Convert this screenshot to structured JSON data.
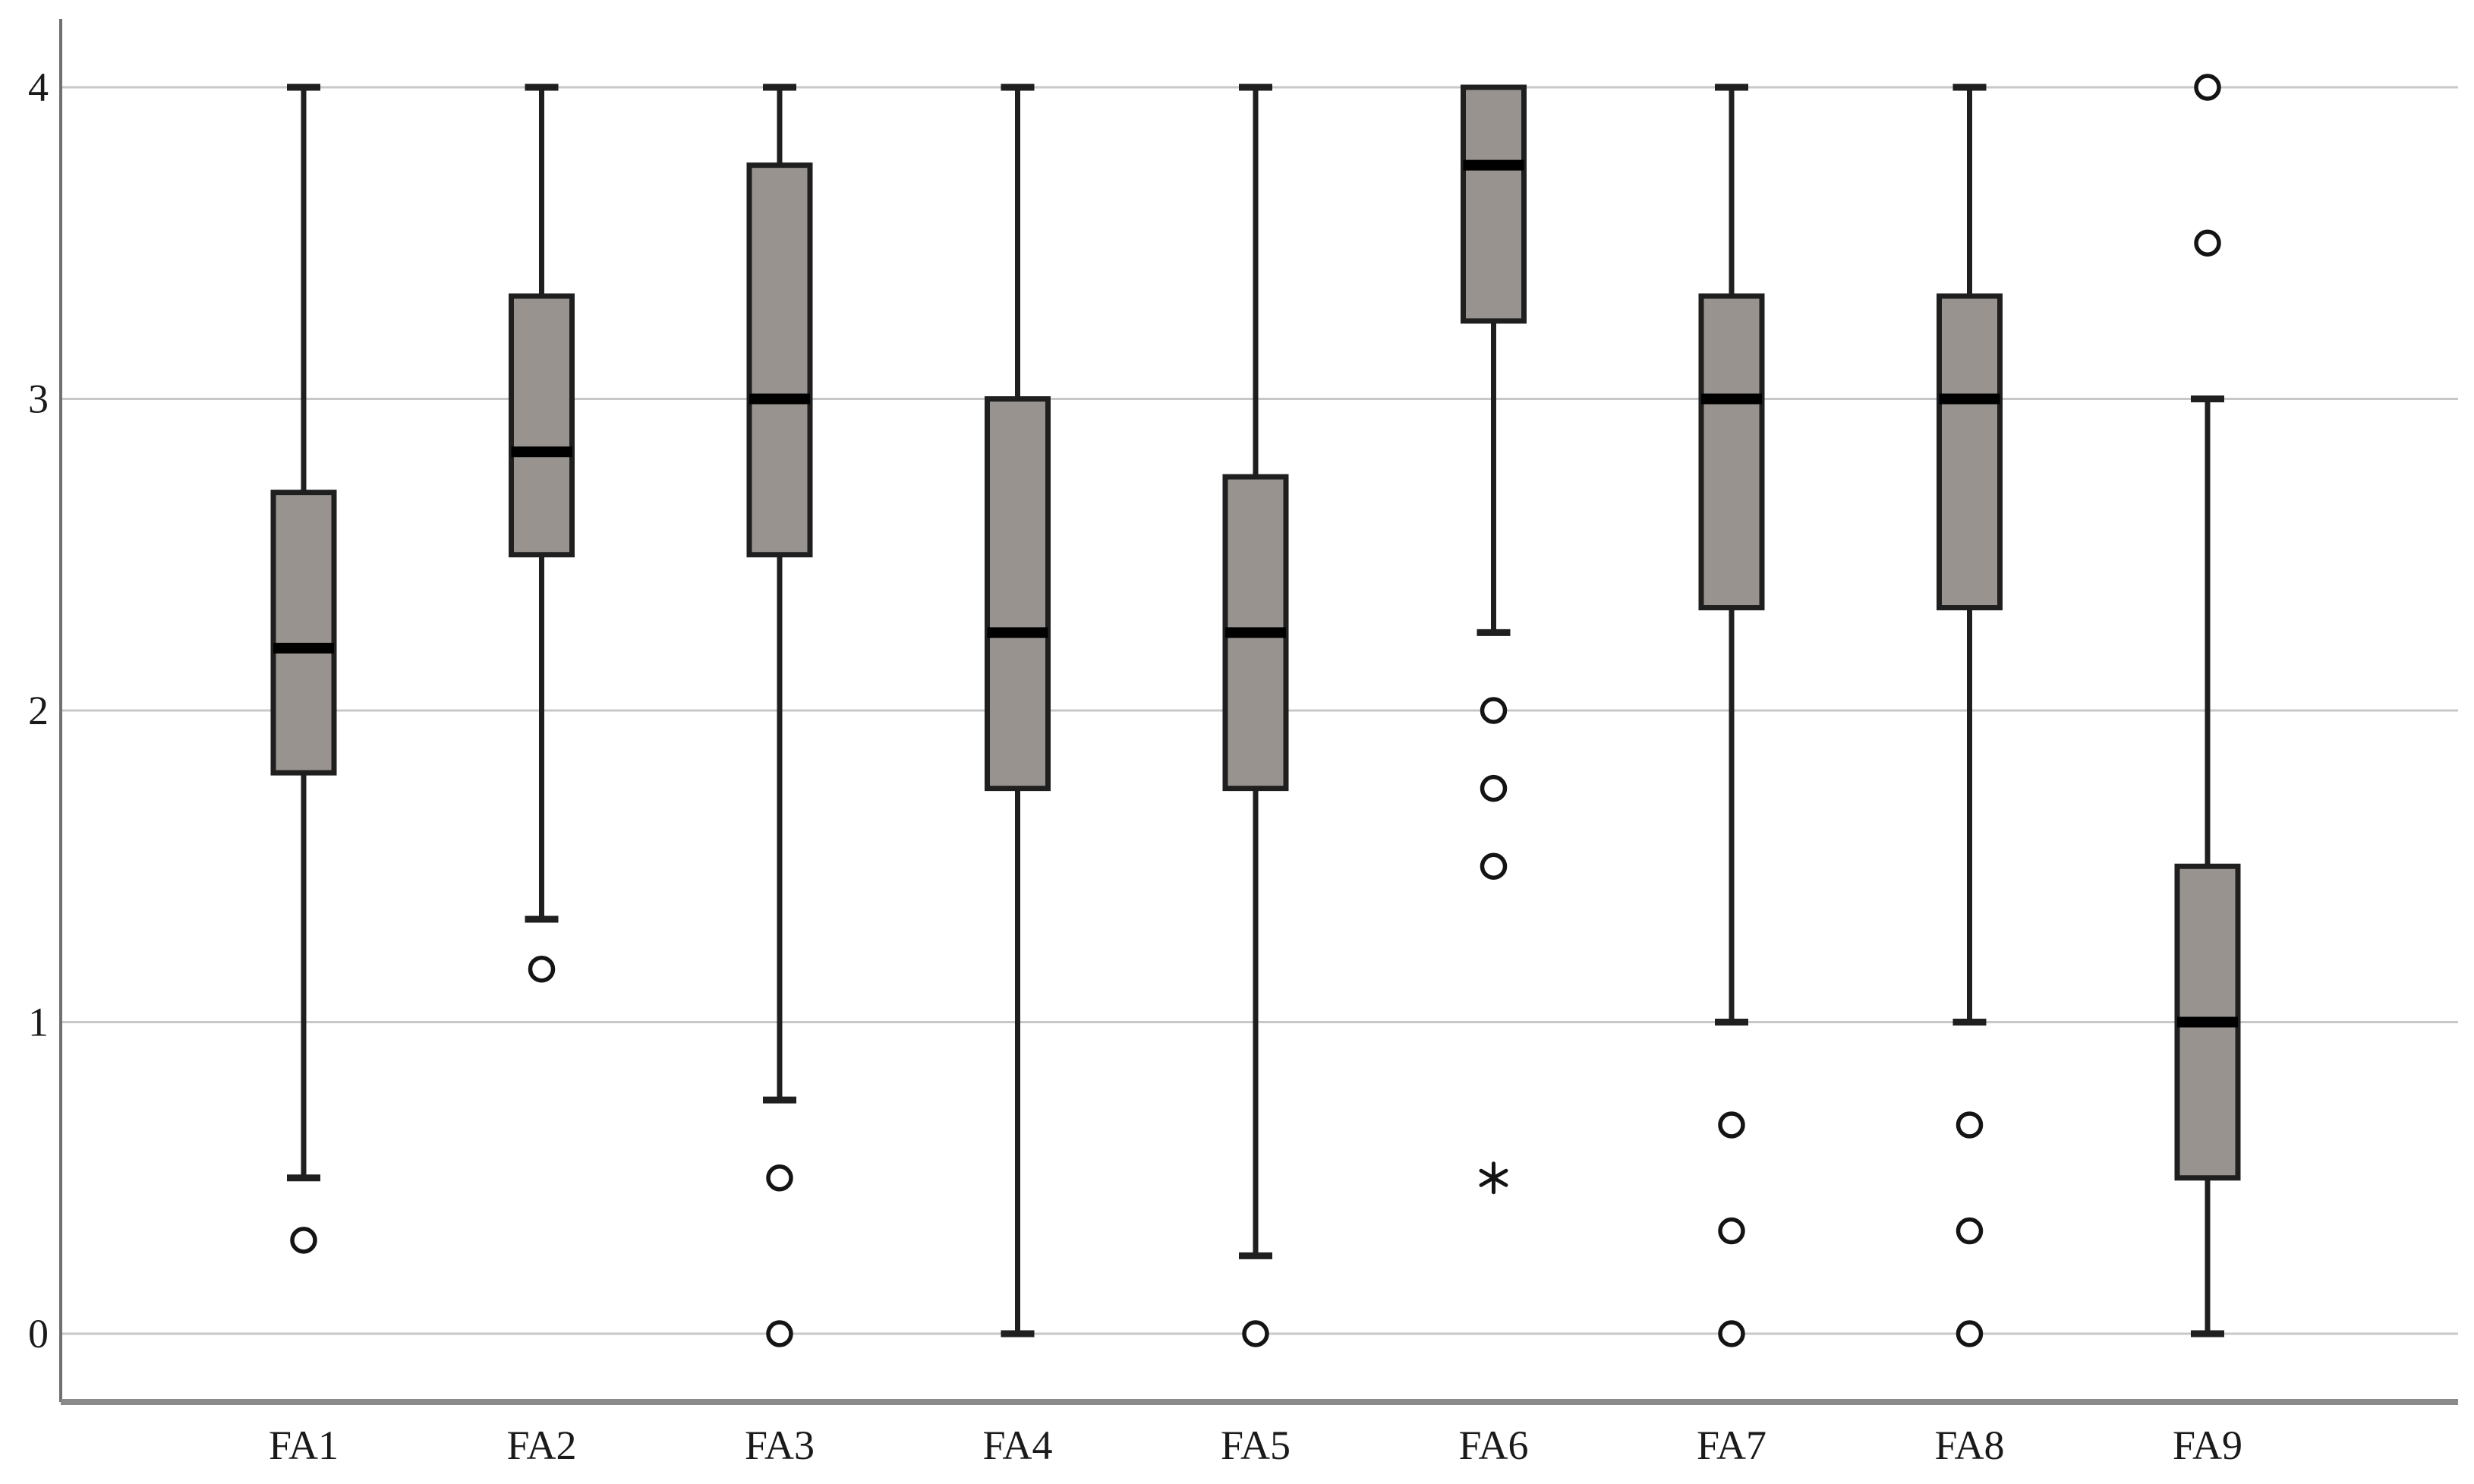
{
  "chart_data": {
    "type": "boxplot",
    "title": "",
    "xlabel": "",
    "ylabel": "",
    "categories": [
      "FA1",
      "FA2",
      "FA3",
      "FA4",
      "FA5",
      "FA6",
      "FA7",
      "FA8",
      "FA9"
    ],
    "ylim": [
      0,
      4
    ],
    "yticks": [
      0,
      1,
      2,
      3,
      4
    ],
    "grid": true,
    "legend": "none",
    "series": [
      {
        "category": "FA1",
        "whisker_low": 0.5,
        "q1": 1.8,
        "median": 2.2,
        "q3": 2.7,
        "whisker_high": 4.0,
        "outliers": [
          0.3
        ],
        "extremes": []
      },
      {
        "category": "FA2",
        "whisker_low": 1.33,
        "q1": 2.5,
        "median": 2.83,
        "q3": 3.33,
        "whisker_high": 4.0,
        "outliers": [
          1.17
        ],
        "extremes": []
      },
      {
        "category": "FA3",
        "whisker_low": 0.75,
        "q1": 2.5,
        "median": 3.0,
        "q3": 3.75,
        "whisker_high": 4.0,
        "outliers": [
          0.5,
          0.0
        ],
        "extremes": []
      },
      {
        "category": "FA4",
        "whisker_low": 0.0,
        "q1": 1.75,
        "median": 2.25,
        "q3": 3.0,
        "whisker_high": 4.0,
        "outliers": [],
        "extremes": []
      },
      {
        "category": "FA5",
        "whisker_low": 0.25,
        "q1": 1.75,
        "median": 2.25,
        "q3": 2.75,
        "whisker_high": 4.0,
        "outliers": [
          0.0
        ],
        "extremes": []
      },
      {
        "category": "FA6",
        "whisker_low": 2.25,
        "q1": 3.25,
        "median": 3.75,
        "q3": 4.0,
        "whisker_high": 4.0,
        "outliers": [
          2.0,
          1.75,
          1.5
        ],
        "extremes": [
          0.5
        ]
      },
      {
        "category": "FA7",
        "whisker_low": 1.0,
        "q1": 2.33,
        "median": 3.0,
        "q3": 3.33,
        "whisker_high": 4.0,
        "outliers": [
          0.67,
          0.33,
          0.0
        ],
        "extremes": []
      },
      {
        "category": "FA8",
        "whisker_low": 1.0,
        "q1": 2.33,
        "median": 3.0,
        "q3": 3.33,
        "whisker_high": 4.0,
        "outliers": [
          0.67,
          0.33,
          0.0
        ],
        "extremes": []
      },
      {
        "category": "FA9",
        "whisker_low": 0.0,
        "q1": 0.5,
        "median": 1.0,
        "q3": 1.5,
        "whisker_high": 3.0,
        "outliers": [
          3.5,
          4.0
        ],
        "extremes": []
      }
    ],
    "colors": {
      "background": "#ffffff",
      "box_fill": "#98938e",
      "box_border": "#1f1f1f",
      "median_line": "#000000",
      "whisker": "#1f1f1f",
      "gridline": "#c8c8c8",
      "axis_spine": "#6f6f6f",
      "bottom_axis": "#8a8a8a",
      "label_text": "#1a1a1a",
      "outlier_stroke": "#141414",
      "outlier_fill": "#ffffff"
    },
    "markers": {
      "outlier": "open-circle",
      "extreme": "asterisk-star"
    }
  }
}
